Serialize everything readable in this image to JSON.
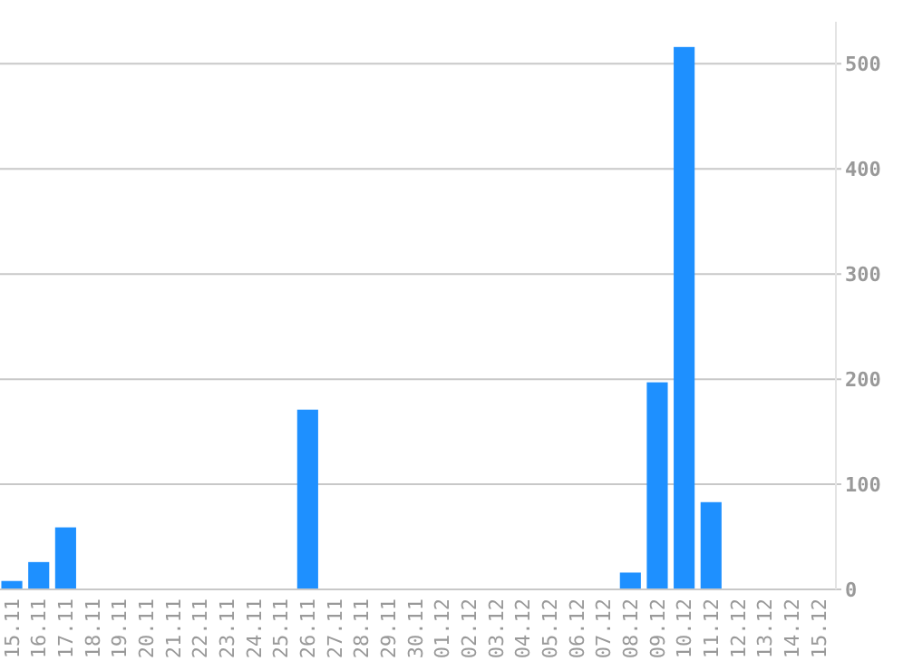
{
  "chart_data": {
    "type": "bar",
    "categories": [
      "15.11",
      "16.11",
      "17.11",
      "18.11",
      "19.11",
      "20.11",
      "21.11",
      "22.11",
      "23.11",
      "24.11",
      "25.11",
      "26.11",
      "27.11",
      "28.11",
      "29.11",
      "30.11",
      "01.12",
      "02.12",
      "03.12",
      "04.12",
      "05.12",
      "06.12",
      "07.12",
      "08.12",
      "09.12",
      "10.12",
      "11.12",
      "12.12",
      "13.12",
      "14.12",
      "15.12"
    ],
    "values": [
      8,
      26,
      59,
      0,
      0,
      0,
      0,
      0,
      0,
      0,
      0,
      171,
      0,
      0,
      0,
      0,
      0,
      0,
      0,
      0,
      0,
      0,
      0,
      16,
      197,
      516,
      83,
      0,
      0,
      0,
      0
    ],
    "color": "#1e90ff",
    "ylim": [
      0,
      540
    ],
    "yticks": [
      0,
      100,
      200,
      300,
      400,
      500
    ],
    "grid": "y"
  }
}
